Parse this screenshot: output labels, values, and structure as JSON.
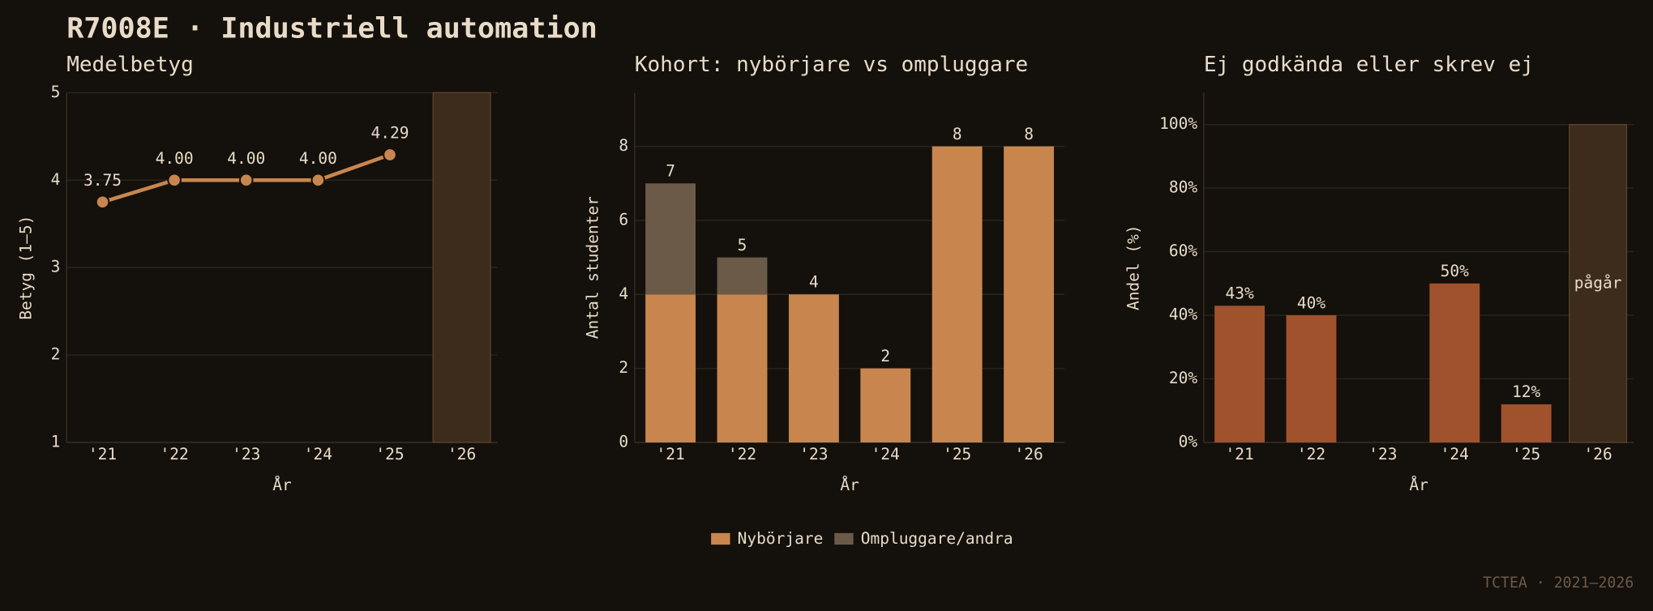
{
  "header": {
    "title": "R7008E · Industriell automation"
  },
  "footer": "TCTEA · 2021–2026",
  "chart_data": [
    {
      "type": "line",
      "title": "Medelbetyg",
      "x_label": "År",
      "y_label": "Betyg (1–5)",
      "categories": [
        "'21",
        "'22",
        "'23",
        "'24",
        "'25",
        "'26"
      ],
      "values": [
        3.75,
        4.0,
        4.0,
        4.0,
        4.29,
        null
      ],
      "value_labels": [
        "3.75",
        "4.00",
        "4.00",
        "4.00",
        "4.29",
        null
      ],
      "color": "#c8864e",
      "in_progress": "'26",
      "ylim": [
        1,
        5
      ],
      "yticks": [
        1,
        2,
        3,
        4,
        5
      ],
      "grid": true
    },
    {
      "type": "stacked_bar",
      "title": "Kohort: nybörjare vs ompluggare",
      "x_label": "År",
      "y_label": "Antal studenter",
      "categories": [
        "'21",
        "'22",
        "'23",
        "'24",
        "'25",
        "'26"
      ],
      "series": [
        {
          "name": "Nybörjare",
          "color": "#c8864e",
          "values": [
            4,
            4,
            4,
            2,
            8,
            8
          ]
        },
        {
          "name": "Ompluggare/andra",
          "color": "#6b5a48",
          "values": [
            3,
            1,
            0,
            0,
            0,
            0
          ]
        }
      ],
      "totals": [
        7,
        5,
        4,
        2,
        8,
        8
      ],
      "ylim": [
        0,
        9.45
      ],
      "yticks": [
        0,
        2,
        4,
        6,
        8
      ],
      "grid": true,
      "legend": "bottom"
    },
    {
      "type": "bar",
      "title": "Ej godkända eller skrev ej",
      "x_label": "År",
      "y_label": "Andel (%)",
      "categories": [
        "'21",
        "'22",
        "'23",
        "'24",
        "'25",
        "'26"
      ],
      "values": [
        43,
        40,
        null,
        50,
        12,
        null
      ],
      "value_labels": [
        "43%",
        "40%",
        null,
        "50%",
        "12%",
        null
      ],
      "color": "#a0522d",
      "in_progress": "'26",
      "in_progress_label": "pågår",
      "ylim": [
        0,
        110
      ],
      "yticks": [
        {
          "value": 0,
          "label": "0%"
        },
        {
          "value": 20,
          "label": "20%"
        },
        {
          "value": 40,
          "label": "40%"
        },
        {
          "value": 60,
          "label": "60%"
        },
        {
          "value": 80,
          "label": "80%"
        },
        {
          "value": 100,
          "label": "100%"
        }
      ],
      "grid": true
    }
  ]
}
